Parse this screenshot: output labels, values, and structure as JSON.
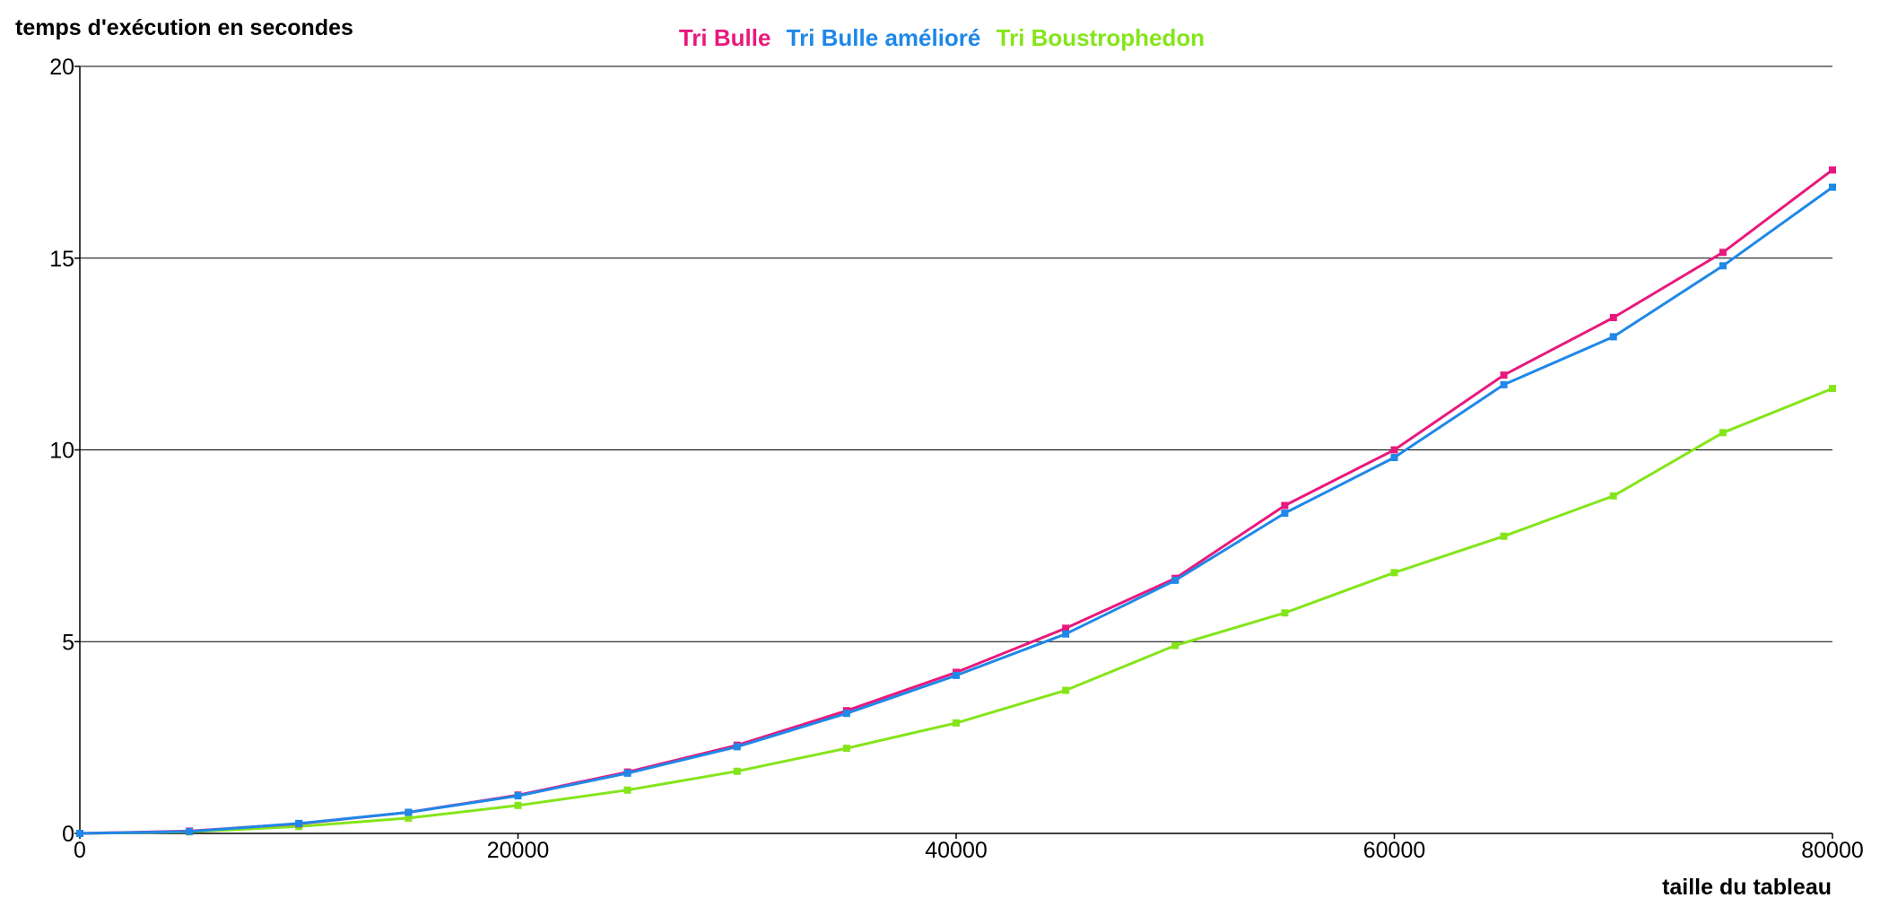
{
  "chart_data": {
    "type": "line",
    "title": "",
    "ylabel": "temps d'exécution en secondes",
    "xlabel": "taille du tableau",
    "xlim": [
      0,
      80000
    ],
    "ylim": [
      0,
      20
    ],
    "x_ticks": [
      "0",
      "20000",
      "40000",
      "60000",
      "80000"
    ],
    "y_ticks": [
      "0",
      "5",
      "10",
      "15",
      "20"
    ],
    "grid": "horizontal",
    "legend_position": "top-center",
    "x": [
      0,
      5000,
      10000,
      15000,
      20000,
      25000,
      30000,
      35000,
      40000,
      45000,
      50000,
      55000,
      60000,
      65000,
      70000,
      75000,
      80000
    ],
    "series": [
      {
        "name": "Tri Bulle",
        "color": "#e8197d",
        "values": [
          0,
          0.06,
          0.25,
          0.55,
          1.0,
          1.6,
          2.3,
          3.2,
          4.2,
          5.35,
          6.65,
          8.55,
          10.0,
          11.95,
          13.45,
          15.15,
          17.3
        ]
      },
      {
        "name": "Tri Bulle amélioré",
        "color": "#1f88e8",
        "values": [
          0,
          0.05,
          0.26,
          0.55,
          0.98,
          1.57,
          2.26,
          3.13,
          4.12,
          5.2,
          6.6,
          8.35,
          9.8,
          11.7,
          12.95,
          14.8,
          16.85
        ]
      },
      {
        "name": "Tri Boustrophedon",
        "color": "#84e51a",
        "values": [
          0,
          0.04,
          0.18,
          0.4,
          0.73,
          1.13,
          1.62,
          2.22,
          2.88,
          3.73,
          4.9,
          5.75,
          6.8,
          7.75,
          8.8,
          10.45,
          11.6
        ]
      }
    ]
  }
}
